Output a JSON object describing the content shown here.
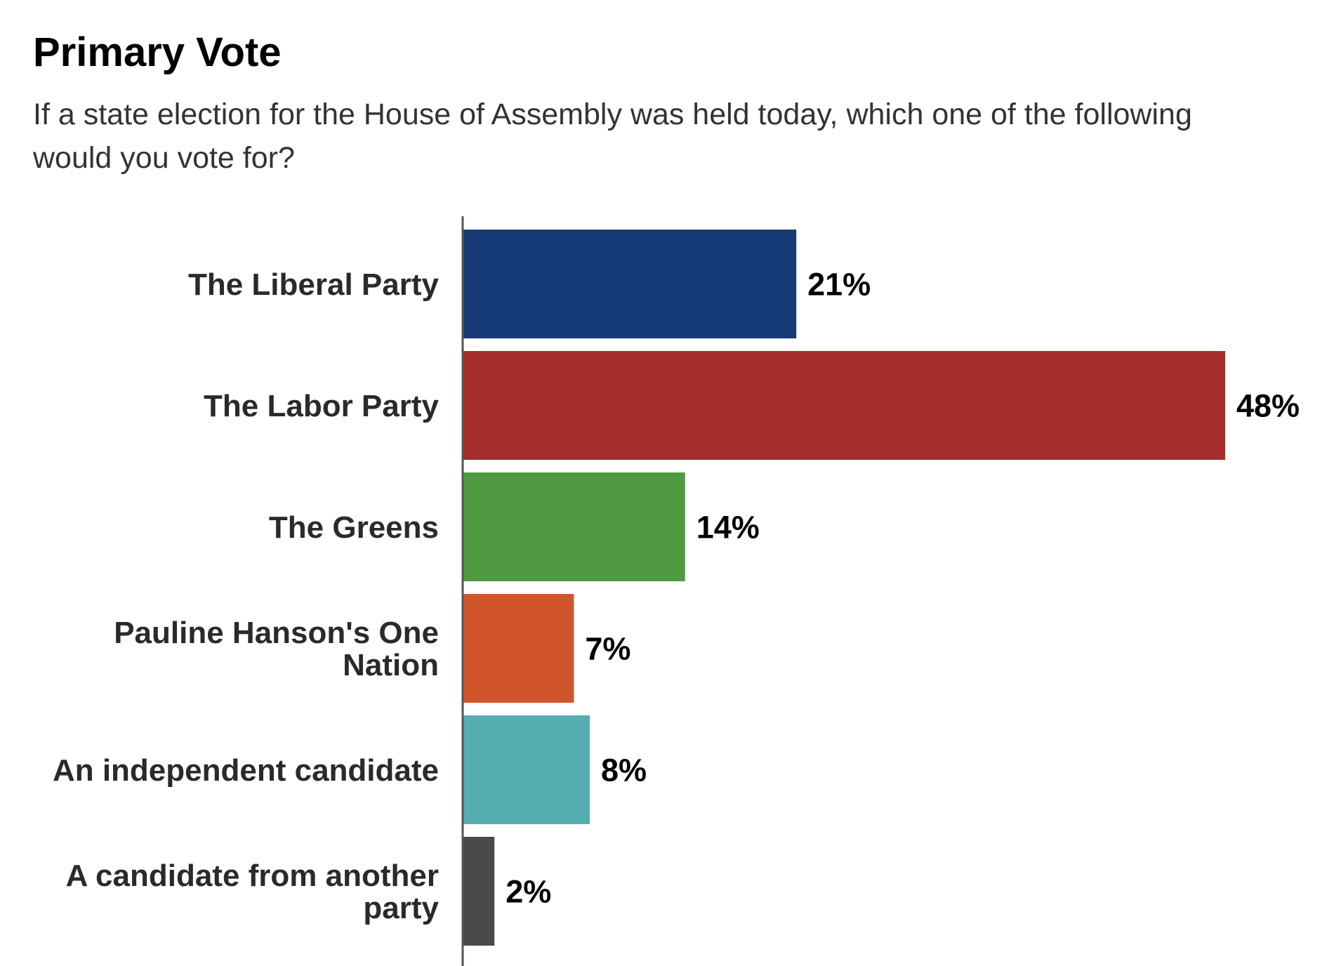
{
  "chart_data": {
    "type": "bar",
    "orientation": "horizontal",
    "title": "Primary Vote",
    "subtitle": "If a state election for the House of Assembly was held today, which one of the following would you vote for?",
    "categories": [
      "The Liberal Party",
      "The Labor Party",
      "The Greens",
      "Pauline Hanson's One Nation",
      "An independent candidate",
      "A candidate from another party"
    ],
    "category_lines": [
      [
        "The Liberal Party"
      ],
      [
        "The Labor Party"
      ],
      [
        "The Greens"
      ],
      [
        "Pauline Hanson's One",
        "Nation"
      ],
      [
        "An independent candidate"
      ],
      [
        "A candidate from another",
        "party"
      ]
    ],
    "values": [
      21,
      48,
      14,
      7,
      8,
      2
    ],
    "value_labels": [
      "21%",
      "48%",
      "14%",
      "7%",
      "8%",
      "2%"
    ],
    "colors": [
      "#163A75",
      "#A52D2C",
      "#4F9940",
      "#D1552A",
      "#55AEB0",
      "#4A4A4A"
    ],
    "xlim": [
      0,
      48
    ],
    "grid": false,
    "legend": "none"
  }
}
